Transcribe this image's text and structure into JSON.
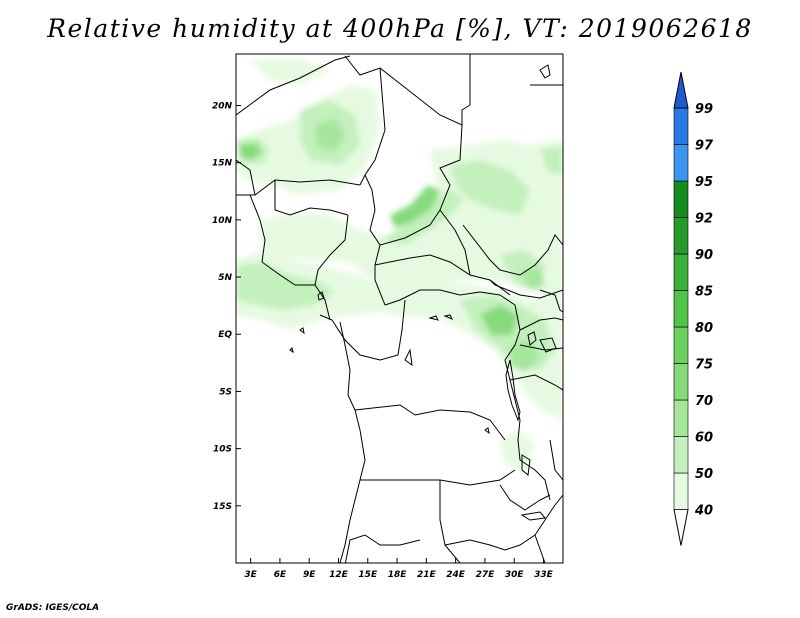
{
  "title": "Relative humidity at 400hPa [%], VT: 2019062618",
  "credit": "GrADS: IGES/COLA",
  "lat_labels": [
    "20N",
    "15N",
    "10N",
    "5N",
    "EQ",
    "5S",
    "10S",
    "15S"
  ],
  "lat_values": [
    20,
    15,
    10,
    5,
    0,
    -5,
    -10,
    -15
  ],
  "lon_labels": [
    "3E",
    "6E",
    "9E",
    "12E",
    "15E",
    "18E",
    "21E",
    "24E",
    "27E",
    "30E",
    "33E"
  ],
  "lon_values": [
    3,
    6,
    9,
    12,
    15,
    18,
    21,
    24,
    27,
    30,
    33
  ],
  "map_extent": {
    "lon": [
      1.5,
      35
    ],
    "lat": [
      -20,
      24.5
    ]
  },
  "colorbar": {
    "levels": [
      "40",
      "50",
      "60",
      "70",
      "75",
      "80",
      "85",
      "90",
      "92",
      "95",
      "97",
      "99"
    ],
    "colors": [
      "#ffffff",
      "#e6fae1",
      "#c3f0bd",
      "#a5e69b",
      "#86da7c",
      "#6bd15f",
      "#52c547",
      "#38b03a",
      "#269a2a",
      "#158c20",
      "#3c96f0",
      "#2878e6",
      "#1e5ad2"
    ]
  }
}
